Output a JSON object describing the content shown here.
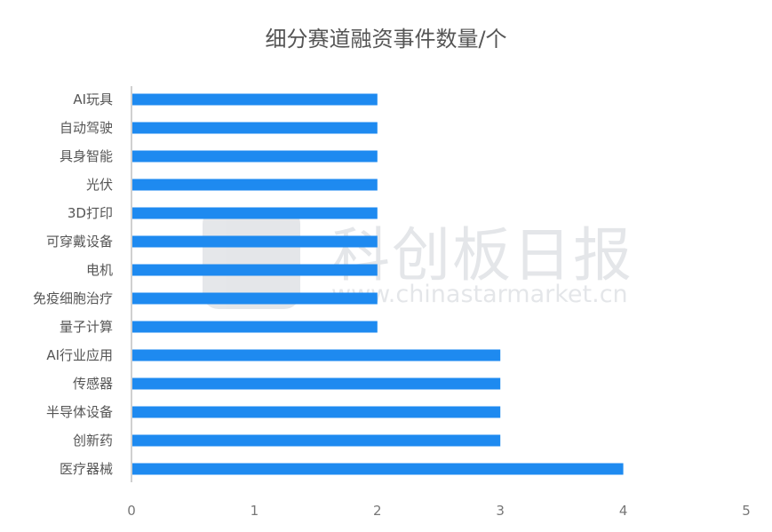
{
  "chart_data": {
    "type": "bar",
    "orientation": "horizontal",
    "title": "细分赛道融资事件数量/个",
    "categories": [
      "AI玩具",
      "自动驾驶",
      "具身智能",
      "光伏",
      "3D打印",
      "可穿戴设备",
      "电机",
      "免疫细胞治疗",
      "量子计算",
      "AI行业应用",
      "传感器",
      "半导体设备",
      "创新药",
      "医疗器械"
    ],
    "values": [
      2,
      2,
      2,
      2,
      2,
      2,
      2,
      2,
      2,
      3,
      3,
      3,
      3,
      4
    ],
    "xlim": [
      0,
      5
    ],
    "xticks": [
      "0",
      "1",
      "2",
      "3",
      "4",
      "5"
    ],
    "grid": false,
    "bar_color": "#1e8af0",
    "axis_color": "#d0d0d0"
  },
  "watermark": {
    "brand": "科创板日报",
    "url": "www.chinastarmarket.cn"
  }
}
